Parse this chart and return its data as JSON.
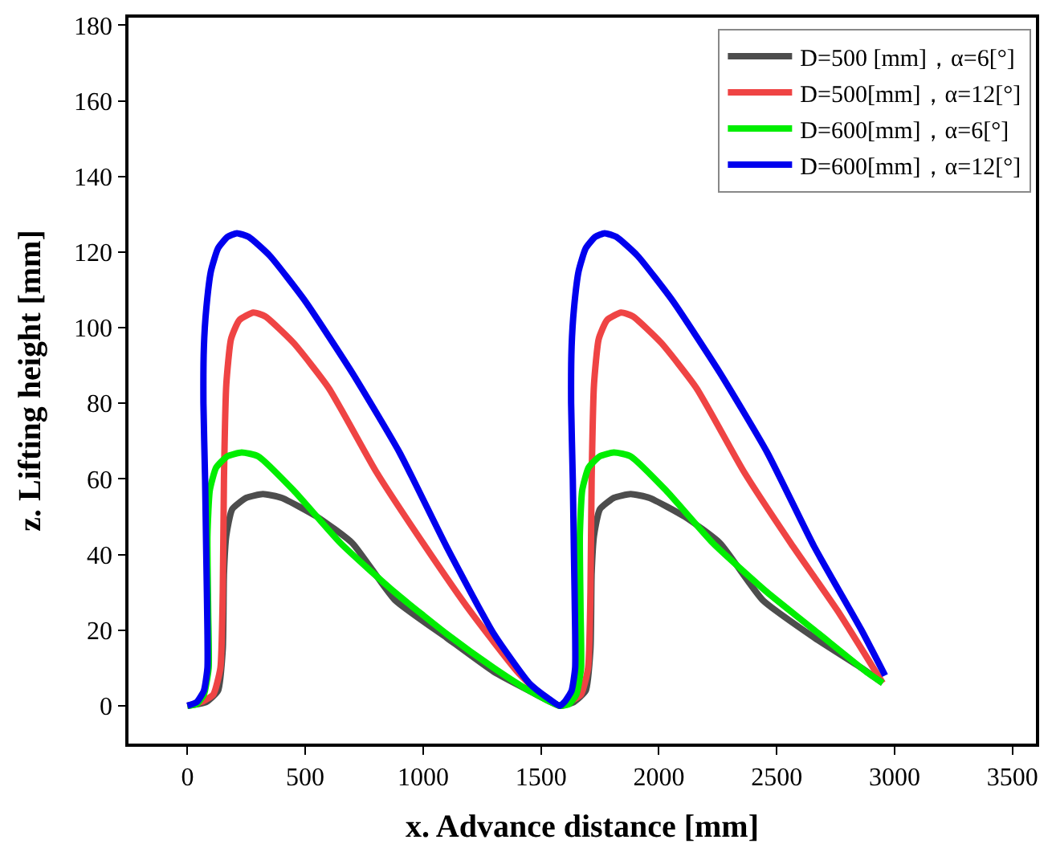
{
  "chart_data": {
    "type": "line",
    "xlabel": "x. Advance distance [mm]",
    "ylabel": "z. Lifting height [mm]",
    "xlim": [
      -250,
      3600
    ],
    "xticks": [
      0,
      500,
      1000,
      1500,
      2000,
      2500,
      3000,
      3500
    ],
    "ylim": [
      -10,
      182
    ],
    "yticks": [
      0,
      20,
      40,
      60,
      80,
      100,
      120,
      140,
      160,
      180
    ],
    "legend": "top right",
    "marker": "none",
    "line_style": "solid",
    "series": [
      {
        "name": "D=500 [mm]，α=6[°]",
        "color": "#4d4d4d",
        "x": [
          0,
          80,
          130,
          150,
          155,
          165,
          190,
          250,
          320,
          400,
          550,
          700,
          880,
          1100,
          1300,
          1450,
          1580,
          1640,
          1690,
          1710,
          1715,
          1725,
          1750,
          1810,
          1880,
          1960,
          2110,
          2260,
          2440,
          2660,
          2860,
          2950
        ],
        "values": [
          0,
          1,
          4,
          15,
          35,
          45,
          52,
          55,
          56,
          55,
          50,
          43,
          28,
          18,
          9,
          4,
          0,
          1,
          4,
          15,
          35,
          45,
          52,
          55,
          56,
          55,
          50,
          43,
          28,
          18,
          10,
          6
        ]
      },
      {
        "name": "D=500[mm]，α=12[°]",
        "color": "#ef4444",
        "x": [
          0,
          60,
          110,
          140,
          150,
          155,
          165,
          185,
          220,
          280,
          330,
          450,
          600,
          800,
          1000,
          1200,
          1400,
          1500,
          1580,
          1620,
          1670,
          1700,
          1710,
          1715,
          1725,
          1745,
          1780,
          1840,
          1890,
          2010,
          2160,
          2360,
          2560,
          2760,
          2950
        ],
        "values": [
          0,
          1,
          3,
          10,
          30,
          60,
          85,
          97,
          102,
          104,
          103,
          96,
          84,
          62,
          43,
          25,
          9,
          3,
          0,
          1,
          3,
          10,
          30,
          60,
          85,
          97,
          102,
          104,
          103,
          96,
          84,
          62,
          43,
          25,
          6
        ]
      },
      {
        "name": "D=600[mm]，α=6[°]",
        "color": "#00ee00",
        "x": [
          0,
          40,
          70,
          90,
          88,
          85,
          95,
          122,
          170,
          230,
          300,
          450,
          650,
          880,
          1100,
          1300,
          1450,
          1580,
          1620,
          1650,
          1670,
          1668,
          1665,
          1675,
          1702,
          1750,
          1810,
          1880,
          2030,
          2230,
          2460,
          2680,
          2880,
          2950
        ],
        "values": [
          0,
          0.5,
          3,
          10,
          25,
          45,
          57,
          63,
          66,
          67,
          66,
          57,
          43,
          30,
          19,
          10,
          4,
          0,
          0.5,
          3,
          10,
          25,
          45,
          57,
          63,
          66,
          67,
          66,
          57,
          43,
          30,
          19,
          9,
          6
        ]
      },
      {
        "name": "D=600[mm]，α=12[°]",
        "color": "#0000ee",
        "x": [
          0,
          40,
          70,
          85,
          85,
          80,
          75,
          68,
          70,
          80,
          100,
          130,
          170,
          210,
          260,
          350,
          500,
          700,
          900,
          1100,
          1300,
          1450,
          1530,
          1580,
          1600,
          1630,
          1645,
          1645,
          1640,
          1635,
          1628,
          1630,
          1640,
          1660,
          1690,
          1730,
          1770,
          1820,
          1910,
          2060,
          2260,
          2460,
          2660,
          2860,
          2960
        ],
        "values": [
          0,
          1,
          4,
          10,
          20,
          40,
          60,
          80,
          95,
          105,
          115,
          121,
          124,
          125,
          124,
          119,
          107,
          88,
          67,
          42,
          19,
          6,
          2,
          0,
          1,
          4,
          10,
          20,
          40,
          60,
          80,
          95,
          105,
          115,
          121,
          124,
          125,
          124,
          119,
          107,
          88,
          67,
          42,
          20,
          8
        ]
      }
    ]
  }
}
